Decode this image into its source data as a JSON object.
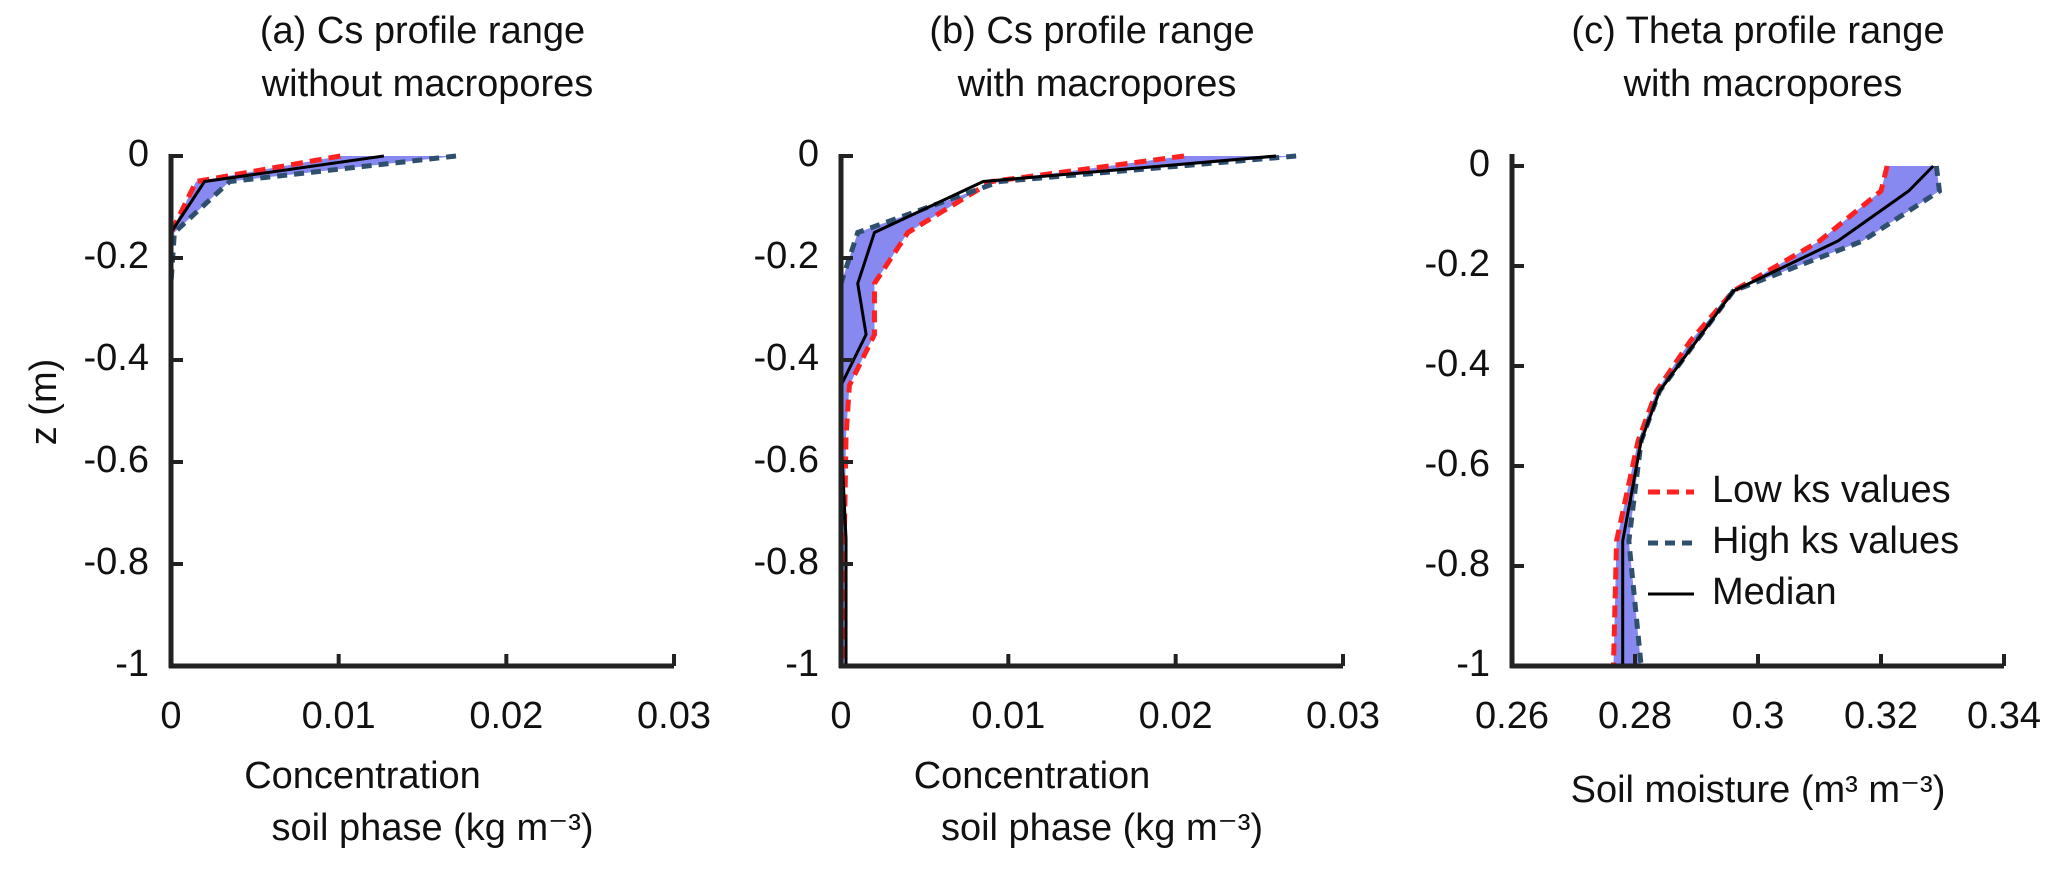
{
  "chart_data": [
    {
      "type": "line",
      "title": [
        "(a) Cs profile range",
        "without macropores"
      ],
      "xlabel": [
        "Concentration",
        "soil phase (kg m⁻³)"
      ],
      "ylabel": "z (m)",
      "y": [
        0,
        -0.05,
        -0.15,
        -0.25,
        -0.5,
        -0.75,
        -1
      ],
      "series": [
        {
          "color": "#ff2020",
          "values": [
            0.0101,
            0.0015,
            0,
            0,
            0,
            0,
            0
          ]
        },
        {
          "color": "#2f4f6f",
          "values": [
            0.017,
            0.0035,
            0.0002,
            0,
            0,
            0,
            0
          ]
        },
        {
          "color": "#000000",
          "values": [
            0.0127,
            0.002,
            0,
            0,
            0,
            0,
            0
          ]
        }
      ],
      "band_color": "#7b7bf0",
      "xlim": [
        0,
        0.03
      ],
      "xticks": [
        0,
        0.01,
        0.02,
        0.03
      ],
      "ylim": [
        -1,
        0
      ],
      "yticks": [
        0,
        -0.2,
        -0.4,
        -0.6,
        -0.8,
        -1
      ]
    },
    {
      "type": "line",
      "title": [
        "(b) Cs profile range",
        "with macropores"
      ],
      "xlabel": [
        "Concentration",
        "soil phase (kg m⁻³)"
      ],
      "y": [
        0,
        -0.05,
        -0.15,
        -0.25,
        -0.35,
        -0.45,
        -0.55,
        -0.75,
        -1
      ],
      "series": [
        {
          "color": "#ff2020",
          "values": [
            0.0205,
            0.009,
            0.004,
            0.002,
            0.002,
            0.0005,
            0.0003,
            0.0002,
            0.0002
          ]
        },
        {
          "color": "#2f4f6f",
          "values": [
            0.0272,
            0.0095,
            0.001,
            0,
            0,
            0,
            0,
            0,
            0
          ]
        },
        {
          "color": "#000000",
          "values": [
            0.026,
            0.0085,
            0.002,
            0.001,
            0.0015,
            0,
            0,
            0.0003,
            0.0003
          ]
        }
      ],
      "band_color": "#7b7bf0",
      "xlim": [
        0,
        0.03
      ],
      "xticks": [
        0,
        0.01,
        0.02,
        0.03
      ],
      "ylim": [
        -1,
        0
      ],
      "yticks": [
        0,
        -0.2,
        -0.4,
        -0.6,
        -0.8,
        -1
      ]
    },
    {
      "type": "line",
      "title": [
        "(c) Theta profile range",
        "with macropores"
      ],
      "xlabel": [
        "Soil moisture (m³ m⁻³)"
      ],
      "y": [
        0,
        -0.05,
        -0.15,
        -0.25,
        -0.35,
        -0.45,
        -0.55,
        -0.75,
        -1
      ],
      "series": [
        {
          "name": "Low ks values",
          "color": "#ff2020",
          "values": [
            0.321,
            0.32,
            0.31,
            0.296,
            0.289,
            0.2835,
            0.2805,
            0.277,
            0.2765
          ]
        },
        {
          "name": "High ks values",
          "color": "#2f4f6f",
          "values": [
            0.329,
            0.3295,
            0.317,
            0.296,
            0.29,
            0.284,
            0.281,
            0.279,
            0.281
          ]
        },
        {
          "name": "Median",
          "color": "#000000",
          "values": [
            0.3285,
            0.3245,
            0.313,
            0.296,
            0.29,
            0.284,
            0.281,
            0.278,
            0.278
          ]
        }
      ],
      "band_color": "#7b7bf0",
      "xlim": [
        0.26,
        0.34
      ],
      "xticks": [
        0.26,
        0.28,
        0.3,
        0.32,
        0.34
      ],
      "ylim": [
        -1,
        0.02
      ],
      "yticks": [
        0,
        -0.2,
        -0.4,
        -0.6,
        -0.8,
        -1
      ]
    }
  ]
}
